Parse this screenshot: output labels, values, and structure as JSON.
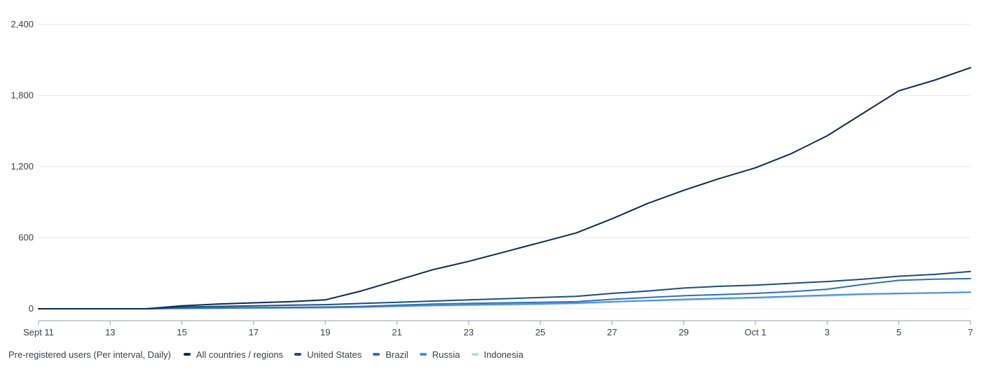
{
  "chart_data": {
    "type": "line",
    "x": [
      "Sept 11",
      "12",
      "13",
      "14",
      "15",
      "16",
      "17",
      "18",
      "19",
      "20",
      "21",
      "22",
      "23",
      "24",
      "25",
      "26",
      "27",
      "28",
      "29",
      "30",
      "Oct 1",
      "2",
      "3",
      "4",
      "5",
      "6",
      "7"
    ],
    "x_tick_labels": [
      "Sept 11",
      "13",
      "15",
      "17",
      "19",
      "21",
      "23",
      "25",
      "27",
      "29",
      "Oct 1",
      "3",
      "5",
      "7"
    ],
    "y_tick_labels": [
      "0",
      "600",
      "1,200",
      "1,800",
      "2,400"
    ],
    "y_ticks": [
      0,
      600,
      1200,
      1800,
      2400
    ],
    "ylim": [
      0,
      2400
    ],
    "grid": true,
    "legend_position": "bottom-left",
    "legend_title": "Pre-registered users (Per interval, Daily)",
    "series": [
      {
        "name": "All countries / regions",
        "color": "#0d2b4e",
        "values": [
          0,
          0,
          0,
          0,
          25,
          40,
          50,
          60,
          75,
          150,
          240,
          330,
          400,
          480,
          560,
          640,
          760,
          890,
          1000,
          1100,
          1190,
          1310,
          1460,
          1650,
          1840,
          1930,
          2035
        ]
      },
      {
        "name": "United States",
        "color": "#1f4e79",
        "values": [
          0,
          0,
          0,
          0,
          15,
          20,
          25,
          30,
          35,
          45,
          55,
          65,
          75,
          85,
          95,
          105,
          130,
          150,
          175,
          190,
          200,
          215,
          230,
          250,
          275,
          290,
          315
        ]
      },
      {
        "name": "Brazil",
        "color": "#2f6fb5",
        "values": [
          0,
          0,
          0,
          0,
          5,
          8,
          10,
          12,
          15,
          20,
          30,
          40,
          45,
          50,
          55,
          60,
          80,
          95,
          110,
          120,
          130,
          145,
          165,
          205,
          240,
          250,
          255
        ]
      },
      {
        "name": "Russia",
        "color": "#4a90d9",
        "values": [
          0,
          0,
          0,
          0,
          3,
          5,
          7,
          9,
          10,
          15,
          22,
          28,
          33,
          38,
          42,
          48,
          60,
          70,
          80,
          88,
          95,
          105,
          115,
          125,
          130,
          135,
          140
        ]
      },
      {
        "name": "Indonesia",
        "color": "#b8dcf2",
        "values": [
          0,
          0,
          0,
          0,
          2,
          4,
          5,
          7,
          8,
          12,
          18,
          24,
          28,
          32,
          36,
          42,
          55,
          65,
          72,
          80,
          88,
          98,
          108,
          118,
          125,
          132,
          138
        ]
      }
    ]
  }
}
